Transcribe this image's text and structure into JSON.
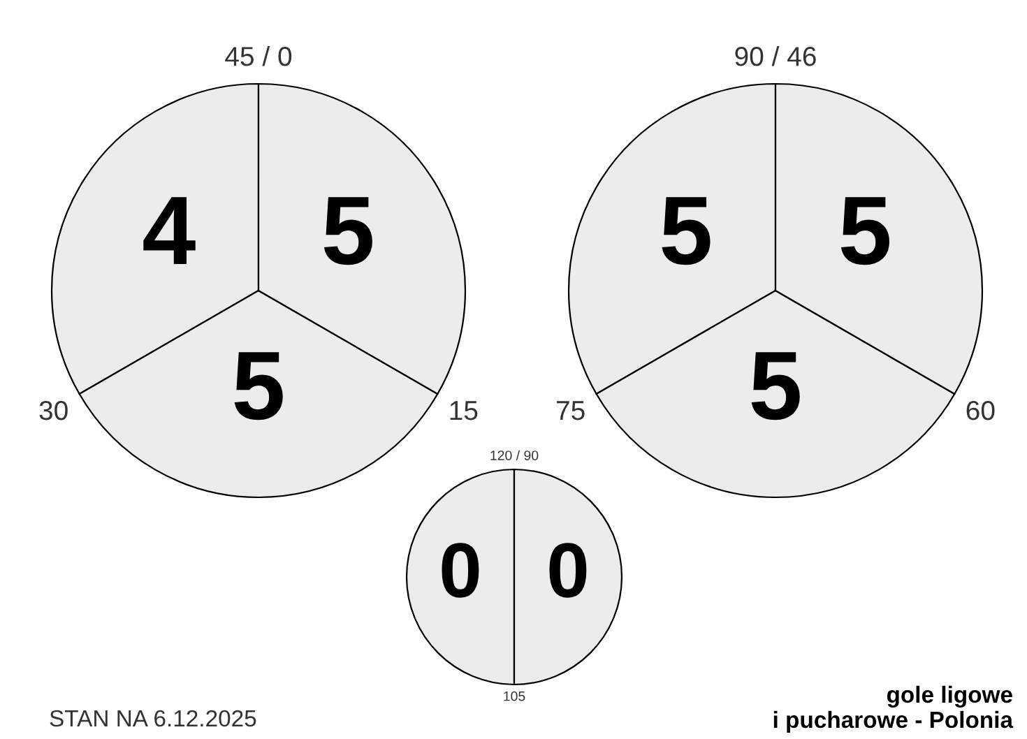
{
  "chart_data": [
    {
      "type": "other",
      "values": [
        4,
        5,
        5
      ],
      "data_labels": true,
      "color": "#ececec",
      "annotations": [
        "45 / 0",
        "30",
        "15"
      ]
    },
    {
      "type": "other",
      "values": [
        5,
        5,
        5
      ],
      "data_labels": true,
      "color": "#ececec",
      "annotations": [
        "90 / 46",
        "75",
        "60"
      ]
    },
    {
      "type": "other",
      "values": [
        0,
        0
      ],
      "data_labels": true,
      "color": "#ececec",
      "annotations": [
        "120 / 90",
        "105"
      ]
    },
    {
      "type": "other",
      "annotations": [
        "STAN NA 6.12.2025",
        "gole ligowe\ni pucharowe - Polonia"
      ]
    }
  ]
}
